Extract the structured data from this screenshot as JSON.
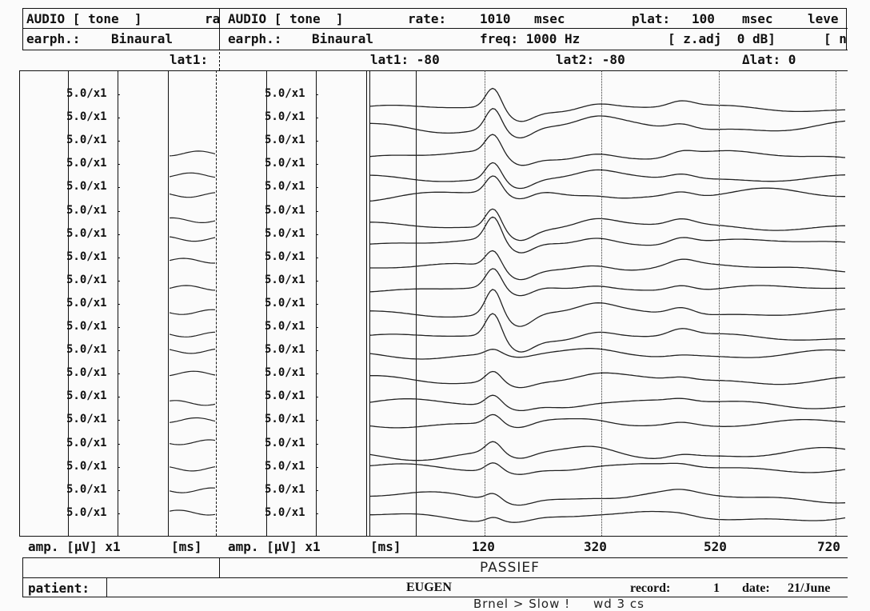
{
  "left_header": {
    "title": "AUDIO [ tone  ]",
    "rate_trunc": "ra",
    "earph_label": "earph.:",
    "earph_value": "Binaural",
    "lat1": "lat1:"
  },
  "main_header": {
    "title": "AUDIO [ tone  ]",
    "rate_label": "rate:",
    "rate_value": "1010",
    "rate_unit": "msec",
    "plat_label": "plat:",
    "plat_value": "100",
    "plat_unit": "msec",
    "level_trunc": "leve",
    "earph_label": "earph.:",
    "earph_value": "Binaural",
    "freq": "freq: 1000 Hz",
    "zadj": "[ z.adj  0 dB]",
    "bracket_trunc": "[ n",
    "lat1": "lat1: -80",
    "lat2": "lat2: -80",
    "dlat": "Δlat: 0"
  },
  "amp_label": "5.0/x1",
  "left_channels": 19,
  "main_channels": 19,
  "footer": {
    "left_amp": "amp. [µV] x1",
    "left_ms": "[ms]",
    "main_amp": "amp. [µV] x1",
    "main_ms": "[ms]",
    "ticks": [
      "120",
      "320",
      "520",
      "720"
    ],
    "handwritten_condition": "PASSIEF",
    "patient_label": "patient:",
    "patient_name": "EUGEN",
    "record_label": "record:",
    "record_value": "1",
    "date_label": "date:",
    "date_value": "21/June",
    "handwritten_note": "Brnel > Slow !     wd 3 cs"
  },
  "colors": {
    "ink": "#111111",
    "paper": "#fbfbfb",
    "trace": "#222222"
  }
}
